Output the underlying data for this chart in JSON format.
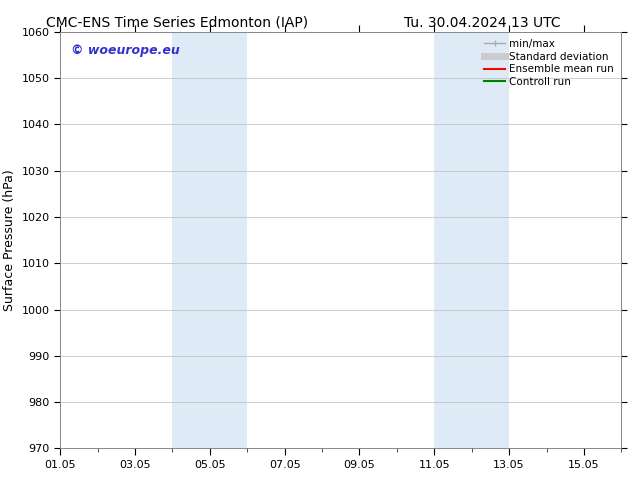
{
  "title_left": "CMC-ENS Time Series Edmonton (IAP)",
  "title_right": "Tu. 30.04.2024 13 UTC",
  "ylabel": "Surface Pressure (hPa)",
  "ylim": [
    970,
    1060
  ],
  "yticks": [
    970,
    980,
    990,
    1000,
    1010,
    1020,
    1030,
    1040,
    1050,
    1060
  ],
  "xlim": [
    0,
    15
  ],
  "xtick_labels": [
    "01.05",
    "03.05",
    "05.05",
    "07.05",
    "09.05",
    "11.05",
    "13.05",
    "15.05"
  ],
  "xtick_positions": [
    0,
    2,
    4,
    6,
    8,
    10,
    12,
    14
  ],
  "shaded_regions": [
    {
      "x_start": 3.0,
      "x_end": 4.0,
      "color": "#deeaf5"
    },
    {
      "x_start": 4.0,
      "x_end": 5.0,
      "color": "#deeaf5"
    },
    {
      "x_start": 10.0,
      "x_end": 11.0,
      "color": "#deeaf5"
    },
    {
      "x_start": 11.0,
      "x_end": 12.0,
      "color": "#deeaf5"
    }
  ],
  "watermark_text": "© woeurope.eu",
  "watermark_color": "#3333cc",
  "legend_entries": [
    {
      "label": "min/max",
      "color": "#aaaaaa",
      "lw": 1.0
    },
    {
      "label": "Standard deviation",
      "color": "#cccccc",
      "lw": 5
    },
    {
      "label": "Ensemble mean run",
      "color": "#ff0000",
      "lw": 1.5
    },
    {
      "label": "Controll run",
      "color": "#008000",
      "lw": 1.5
    }
  ],
  "bg_color": "#ffffff",
  "grid_color": "#bbbbbb",
  "title_fontsize": 10,
  "tick_fontsize": 8,
  "ylabel_fontsize": 9,
  "watermark_fontsize": 9,
  "legend_fontsize": 7.5
}
